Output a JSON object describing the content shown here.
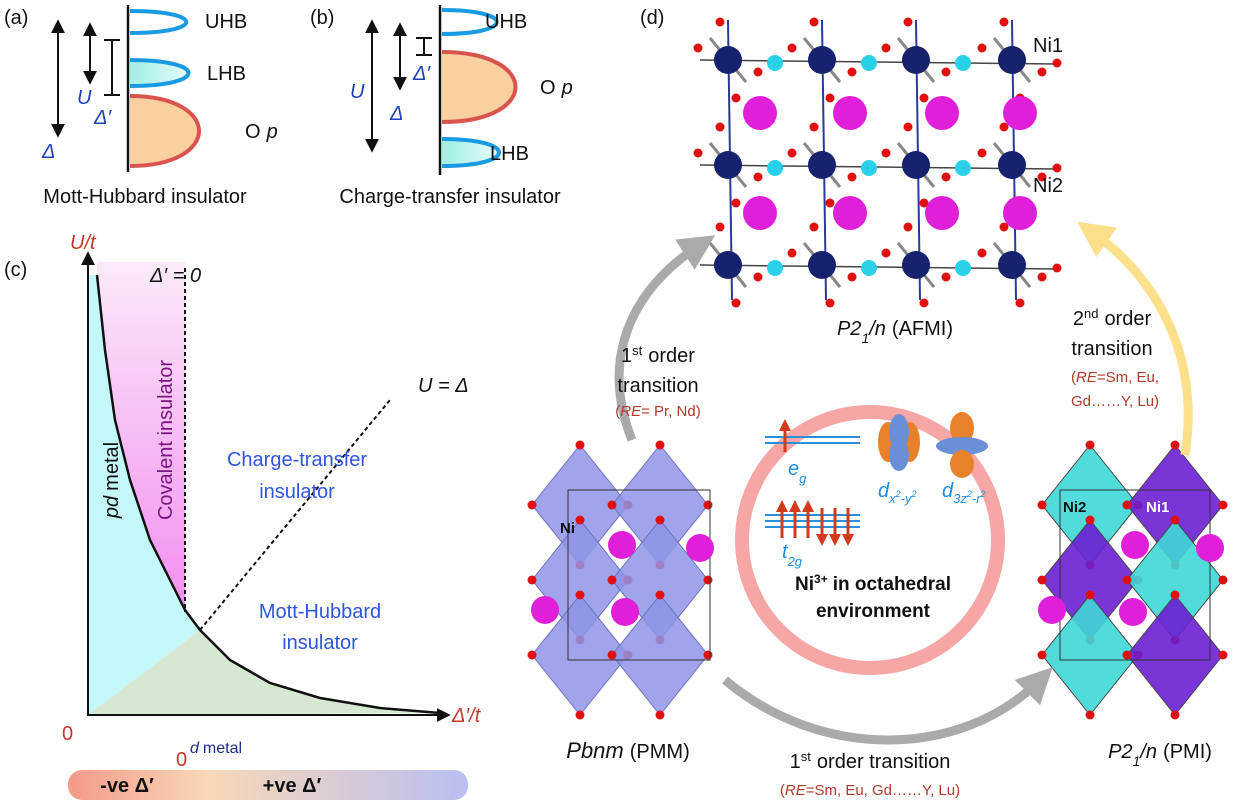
{
  "a": {
    "label": "(a)",
    "uhb": "UHB",
    "lhb": "LHB",
    "op": {
      "o": "O",
      "p": "p"
    },
    "u": "U",
    "delta_prime": "Δ′",
    "delta": "Δ",
    "caption": "Mott-Hubbard insulator"
  },
  "b": {
    "label": "(b)",
    "uhb": "UHB",
    "lhb": "LHB",
    "op": {
      "o": "O",
      "p": "p"
    },
    "u": "U",
    "delta_prime": "Δ′",
    "delta": "Δ",
    "caption": "Charge-transfer insulator"
  },
  "c": {
    "label": "(c)",
    "y_axis": "U/t",
    "x_axis": "Δ′/t",
    "y_origin": "0",
    "x_origin": "0",
    "line_delta": "Δ′ = 0",
    "line_u": "U = Δ",
    "pd_metal": {
      "pd": "pd",
      "metal": "metal"
    },
    "covalent": "Covalent insulator",
    "charge_transfer": [
      "Charge-transfer",
      "insulator"
    ],
    "mott_hubbard": [
      "Mott-Hubbard",
      "insulator"
    ],
    "d_metal": {
      "d": "d",
      "metal": "metal"
    },
    "scale": {
      "negative": "-ve Δ′",
      "positive": "+ve Δ′"
    }
  },
  "d": {
    "label": "(d)",
    "afmi": {
      "ni1": "Ni1",
      "ni2": "Ni2",
      "name": {
        "p2": "P2",
        "sub": "1",
        "n": "/n",
        "phase": "(AFMI)"
      }
    },
    "pmm": {
      "ni": "Ni",
      "name": {
        "group": "Pbnm",
        "phase": "(PMM)"
      }
    },
    "pmi": {
      "ni2": "Ni2",
      "ni1": "Ni1",
      "name": {
        "p2": "P2",
        "sub": "1",
        "n": "/n",
        "phase": "(PMI)"
      }
    },
    "transition_left": {
      "num": "1",
      "sup": "st",
      "word": "order",
      "line2": "transition",
      "re": {
        "open": "(",
        "re": "RE",
        "rest": "= Pr, Nd)"
      }
    },
    "transition_right": {
      "num": "2",
      "sup": "nd",
      "word": "order",
      "line2": "transition",
      "re1": {
        "open": "(",
        "re": "RE",
        "rest": "=Sm, Eu,"
      },
      "re2": "Gd……Y, Lu)"
    },
    "transition_bottom": {
      "num": "1",
      "sup": "st",
      "word": "order transition",
      "re": {
        "open": "(",
        "re": "RE",
        "rest": "=Sm, Eu, Gd……Y, Lu)"
      }
    },
    "orbitals": {
      "eg": {
        "e": "e",
        "sub": "g"
      },
      "t2g": {
        "t": "t",
        "sub": "2g"
      },
      "dx": {
        "d": "d",
        "s1": "x",
        "p1": "2",
        "s2": "-y",
        "p2": "2"
      },
      "dz": {
        "d": "d",
        "s1": "3z",
        "p1": "2",
        "s2": "-r",
        "p2": "2"
      }
    },
    "ni3": {
      "ni": "Ni",
      "sup": "3+",
      "rest": "in octahedral",
      "line2": "environment"
    }
  }
}
